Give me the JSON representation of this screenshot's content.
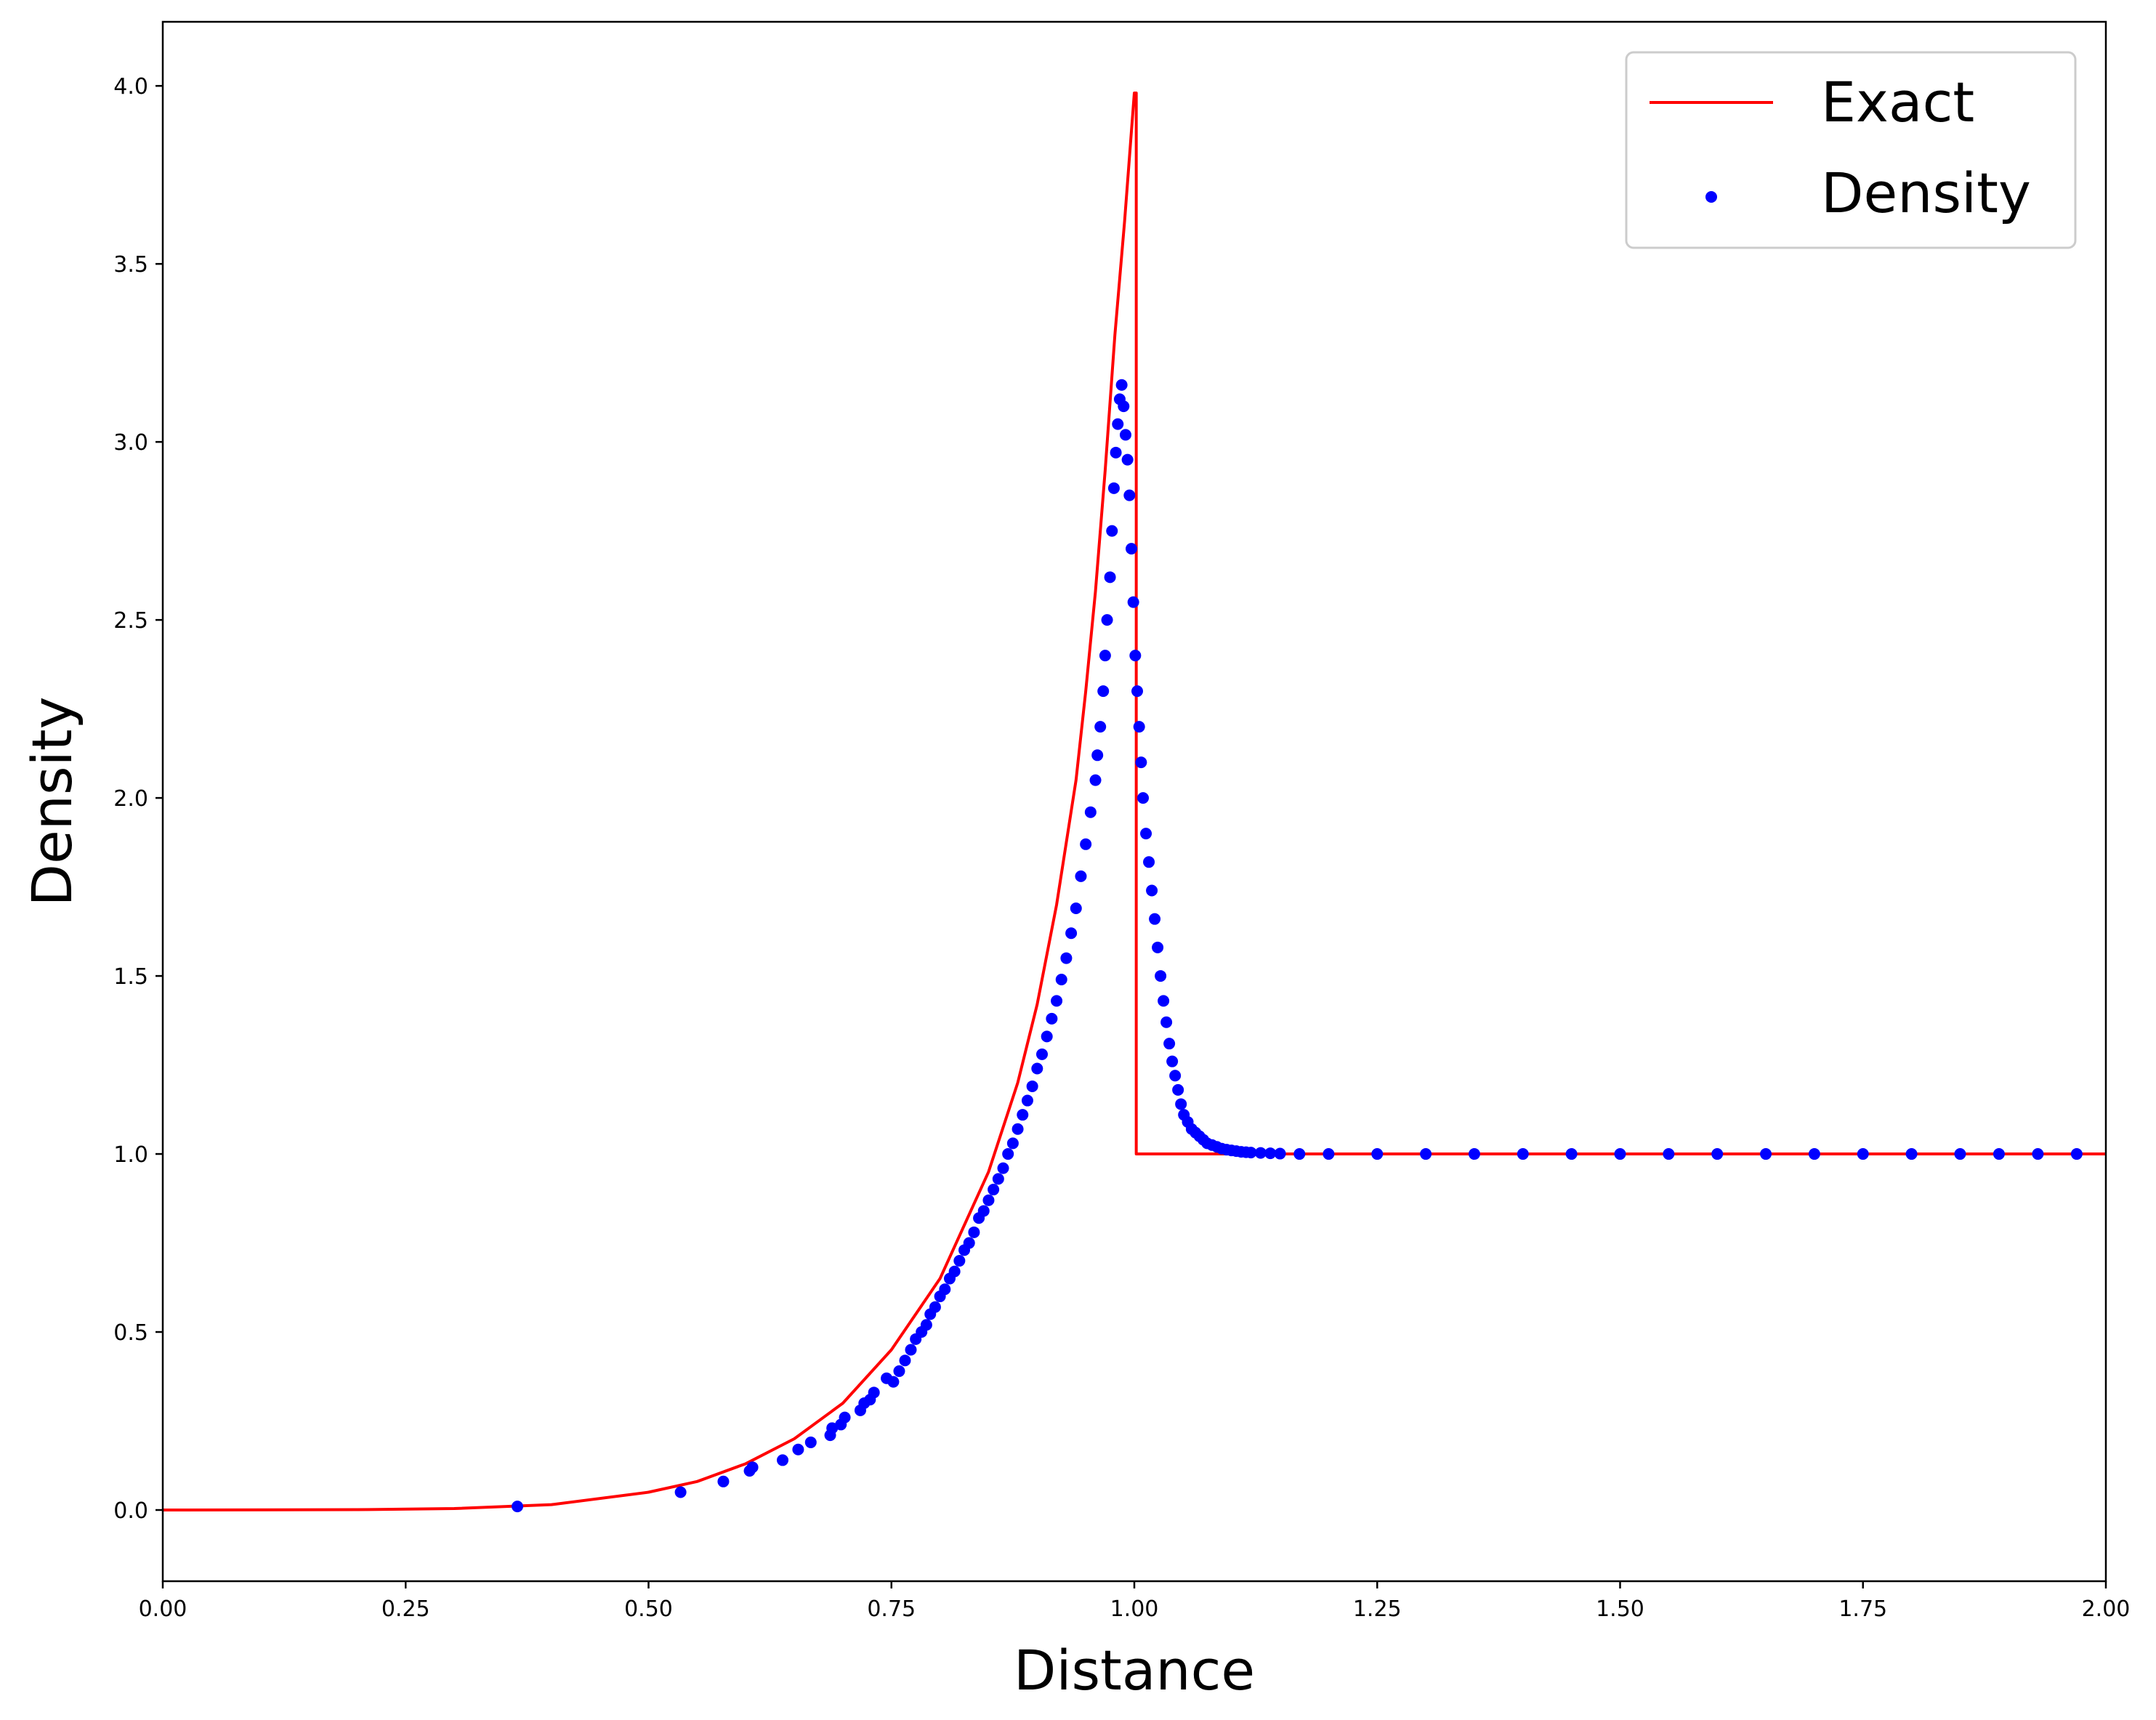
{
  "chart_data": {
    "type": "scatter",
    "title": "",
    "xlabel": "Distance",
    "ylabel": "Density",
    "xlim": [
      0.0,
      2.0
    ],
    "ylim": [
      -0.2,
      4.18
    ],
    "xticks": [
      0.0,
      0.25,
      0.5,
      0.75,
      1.0,
      1.25,
      1.5,
      1.75,
      2.0
    ],
    "yticks": [
      0.0,
      0.5,
      1.0,
      1.5,
      2.0,
      2.5,
      3.0,
      3.5,
      4.0
    ],
    "xtick_labels": [
      "0.00",
      "0.25",
      "0.50",
      "0.75",
      "1.00",
      "1.25",
      "1.50",
      "1.75",
      "2.00"
    ],
    "ytick_labels": [
      "0.0",
      "0.5",
      "1.0",
      "1.5",
      "2.0",
      "2.5",
      "3.0",
      "3.5",
      "4.0"
    ],
    "grid": false,
    "legend_position": "top-right",
    "legend": [
      "Exact",
      "Density"
    ],
    "series": [
      {
        "name": "Exact",
        "kind": "line",
        "color": "#ff0000",
        "x": [
          0.0,
          0.2,
          0.3,
          0.4,
          0.5,
          0.55,
          0.6,
          0.65,
          0.7,
          0.75,
          0.8,
          0.85,
          0.88,
          0.9,
          0.92,
          0.94,
          0.95,
          0.96,
          0.97,
          0.98,
          0.99,
          0.995,
          1.0,
          1.002,
          1.002,
          2.0
        ],
        "y": [
          0.0,
          0.001,
          0.004,
          0.015,
          0.05,
          0.08,
          0.13,
          0.2,
          0.3,
          0.45,
          0.65,
          0.95,
          1.2,
          1.42,
          1.7,
          2.05,
          2.3,
          2.58,
          2.92,
          3.3,
          3.62,
          3.8,
          3.98,
          3.98,
          1.0,
          1.0
        ]
      },
      {
        "name": "Density",
        "kind": "scatter",
        "color": "#0000ff",
        "x": [
          0.365,
          0.533,
          0.577,
          0.604,
          0.607,
          0.638,
          0.654,
          0.667,
          0.687,
          0.689,
          0.698,
          0.702,
          0.718,
          0.722,
          0.728,
          0.732,
          0.745,
          0.752,
          0.758,
          0.764,
          0.77,
          0.775,
          0.781,
          0.786,
          0.79,
          0.795,
          0.8,
          0.805,
          0.81,
          0.815,
          0.82,
          0.825,
          0.83,
          0.835,
          0.84,
          0.845,
          0.85,
          0.855,
          0.86,
          0.865,
          0.87,
          0.875,
          0.88,
          0.885,
          0.89,
          0.895,
          0.9,
          0.905,
          0.91,
          0.915,
          0.92,
          0.925,
          0.93,
          0.935,
          0.94,
          0.945,
          0.95,
          0.955,
          0.96,
          0.962,
          0.965,
          0.968,
          0.97,
          0.972,
          0.975,
          0.977,
          0.979,
          0.981,
          0.983,
          0.985,
          0.987,
          0.989,
          0.991,
          0.993,
          0.995,
          0.997,
          0.999,
          1.001,
          1.003,
          1.005,
          1.007,
          1.009,
          1.012,
          1.015,
          1.018,
          1.021,
          1.024,
          1.027,
          1.03,
          1.033,
          1.036,
          1.039,
          1.042,
          1.045,
          1.048,
          1.051,
          1.055,
          1.059,
          1.063,
          1.067,
          1.071,
          1.075,
          1.08,
          1.085,
          1.09,
          1.095,
          1.1,
          1.105,
          1.11,
          1.115,
          1.12,
          1.13,
          1.14,
          1.15,
          1.17,
          1.2,
          1.25,
          1.3,
          1.35,
          1.4,
          1.45,
          1.5,
          1.55,
          1.6,
          1.65,
          1.7,
          1.75,
          1.8,
          1.85,
          1.89,
          1.93,
          1.97
        ],
        "y": [
          0.01,
          0.05,
          0.08,
          0.11,
          0.12,
          0.14,
          0.17,
          0.19,
          0.21,
          0.23,
          0.24,
          0.26,
          0.28,
          0.3,
          0.31,
          0.33,
          0.37,
          0.36,
          0.39,
          0.42,
          0.45,
          0.48,
          0.5,
          0.52,
          0.55,
          0.57,
          0.6,
          0.62,
          0.65,
          0.67,
          0.7,
          0.73,
          0.75,
          0.78,
          0.82,
          0.84,
          0.87,
          0.9,
          0.93,
          0.96,
          1.0,
          1.03,
          1.07,
          1.11,
          1.15,
          1.19,
          1.24,
          1.28,
          1.33,
          1.38,
          1.43,
          1.49,
          1.55,
          1.62,
          1.69,
          1.78,
          1.87,
          1.96,
          2.05,
          2.12,
          2.2,
          2.3,
          2.4,
          2.5,
          2.62,
          2.75,
          2.87,
          2.97,
          3.05,
          3.12,
          3.16,
          3.1,
          3.02,
          2.95,
          2.85,
          2.7,
          2.55,
          2.4,
          2.3,
          2.2,
          2.1,
          2.0,
          1.9,
          1.82,
          1.74,
          1.66,
          1.58,
          1.5,
          1.43,
          1.37,
          1.31,
          1.26,
          1.22,
          1.18,
          1.14,
          1.11,
          1.09,
          1.07,
          1.06,
          1.05,
          1.04,
          1.03,
          1.025,
          1.02,
          1.015,
          1.012,
          1.01,
          1.008,
          1.006,
          1.005,
          1.004,
          1.003,
          1.002,
          1.001,
          1.0,
          1.0,
          1.0,
          1.0,
          1.0,
          1.0,
          1.0,
          1.0,
          1.0,
          1.0,
          1.0,
          1.0,
          1.0,
          1.0,
          1.0,
          1.0,
          1.0,
          1.0
        ]
      }
    ]
  }
}
